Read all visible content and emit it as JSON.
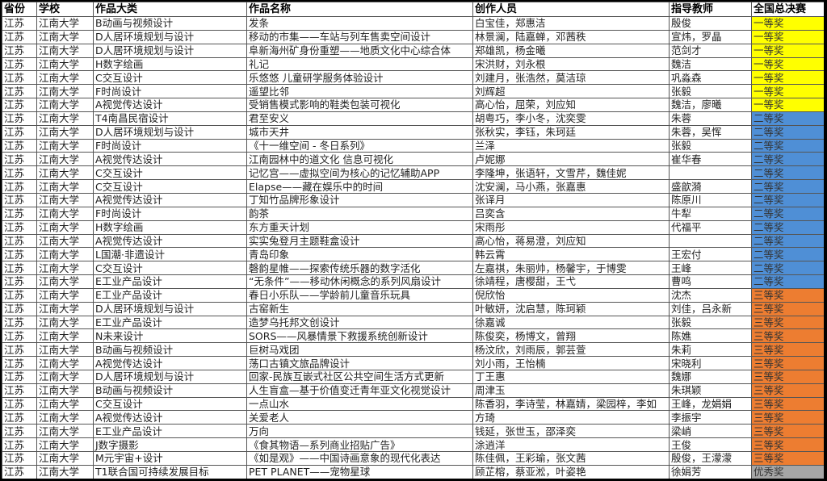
{
  "headers": [
    "省份",
    "学校",
    "作品大类",
    "作品名称",
    "创作人员",
    "指导教师",
    "全国总决赛"
  ],
  "award_colors": {
    "一等奖": "#ffff00",
    "二等奖": "#4f8fd6",
    "三等奖": "#ed7d31",
    "优秀奖": "#a6a6a6"
  },
  "rows": [
    [
      "江苏",
      "江南大学",
      "B动画与视频设计",
      "发条",
      "白宝佳，郑惠洁",
      "殷俊",
      "一等奖"
    ],
    [
      "江苏",
      "江南大学",
      "D人居环境规划与设计",
      "移动的市集——车站与列车售卖空间设计",
      "林景澜，陆嘉蝉，邓茜秩",
      "宣炜，罗晶",
      "一等奖"
    ],
    [
      "江苏",
      "江南大学",
      "D人居环境规划与设计",
      "阜新海州矿身份重塑——地质文化中心综合体",
      "郑雄凯，杨金曦",
      "范剑才",
      "一等奖"
    ],
    [
      "江苏",
      "江南大学",
      "H数字绘画",
      "礼记",
      "宋洪财，刘永根",
      "魏洁",
      "一等奖"
    ],
    [
      "江苏",
      "江南大学",
      "C交互设计",
      "乐悠悠 儿童研学服务体验设计",
      "刘建月，张浩然，莫洁琼",
      "巩淼森",
      "一等奖"
    ],
    [
      "江苏",
      "江南大学",
      "F时尚设计",
      "遥望比邻",
      "刘辉超",
      "张毅",
      "一等奖"
    ],
    [
      "江苏",
      "江南大学",
      "A视觉传达设计",
      "受销售模式影响的鞋类包装可视化",
      "高心怡，屈荣，刘应知",
      "魏洁，廖曦",
      "一等奖"
    ],
    [
      "江苏",
      "江南大学",
      "T4南昌民宿设计",
      "君至安义",
      "胡粤巧，李小冬，沈奕雯",
      "朱蓉",
      "二等奖"
    ],
    [
      "江苏",
      "江南大学",
      "D人居环境规划与设计",
      "城市天井",
      "张秋实，李钰，朱珂廷",
      "朱蓉，吴恽",
      "二等奖"
    ],
    [
      "江苏",
      "江南大学",
      "F时尚设计",
      "《十一维空间 - 冬日系列》",
      "兰泽",
      "张毅",
      "二等奖"
    ],
    [
      "江苏",
      "江南大学",
      "A视觉传达设计",
      "江南园林中的道文化 信息可视化",
      "卢妮娜",
      "崔华春",
      "二等奖"
    ],
    [
      "江苏",
      "江南大学",
      "C交互设计",
      "记忆宫——虚拟空间为核心的记忆辅助APP",
      "李隆坤，张语轩，文雪芹，魏佳妮",
      "",
      "二等奖"
    ],
    [
      "江苏",
      "江南大学",
      "C交互设计",
      "Elapse——藏在娱乐中的时间",
      "沈安澜，马小燕，张嘉惠",
      "盛歆漪",
      "二等奖"
    ],
    [
      "江苏",
      "江南大学",
      "A视觉传达设计",
      "丁知竹品牌形象设计",
      "张译月",
      "陈原川",
      "二等奖"
    ],
    [
      "江苏",
      "江南大学",
      "F时尚设计",
      "韵茶",
      "吕奕含",
      "牛犁",
      "二等奖"
    ],
    [
      "江苏",
      "江南大学",
      "H数字绘画",
      "东方重天计划",
      "宋雨彤",
      "代福平",
      "二等奖"
    ],
    [
      "江苏",
      "江南大学",
      "A视觉传达设计",
      "实实兔登月主题鞋盒设计",
      "高心怡，蒋易澄，刘应知",
      "",
      "二等奖"
    ],
    [
      "江苏",
      "江南大学",
      "L国潮·非遗设计",
      "青岛印象",
      "韩云霄",
      "王宏付",
      "二等奖"
    ],
    [
      "江苏",
      "江南大学",
      "C交互设计",
      "磬韵星帷——探索传统乐器的数字活化",
      "左嘉祺，朱丽帅，杨馨宇，于博雯",
      "王峰",
      "二等奖"
    ],
    [
      "江苏",
      "江南大学",
      "E工业产品设计",
      "“无条件”——移动休闲概念的系列风扇设计",
      "徐靖程，唐樱甜，王弋",
      "曹鸣",
      "二等奖"
    ],
    [
      "江苏",
      "江南大学",
      "E工业产品设计",
      "春日小乐队——学龄前儿童音乐玩具",
      "倪欣怡",
      "沈杰",
      "三等奖"
    ],
    [
      "江苏",
      "江南大学",
      "D人居环境规划与设计",
      "古窑新生",
      "叶敏妍，沈启慧，陈珂颖",
      "刘佳，吕永新",
      "三等奖"
    ],
    [
      "江苏",
      "江南大学",
      "E工业产品设计",
      "造梦乌托邦文创设计",
      "徐嘉诚",
      "张毅",
      "三等奖"
    ],
    [
      "江苏",
      "江南大学",
      "N未来设计",
      "SORS——风暴情景下救援系统创新设计",
      "陈俊奕，杨博文，曾翔",
      "陈嫶",
      "三等奖"
    ],
    [
      "江苏",
      "江南大学",
      "B动画与视频设计",
      "巨树马戏团",
      "杨汶欣，刘雨辰，郭芸萱",
      "朱莉",
      "三等奖"
    ],
    [
      "江苏",
      "江南大学",
      "A视觉传达设计",
      "荡口古镇文旅品牌设计",
      "刘小雨，王怡楠",
      "宋晓利",
      "三等奖"
    ],
    [
      "江苏",
      "江南大学",
      "D人居环境规划与设计",
      "回家-民族互嵌式社区公共空间生活方式更新",
      "丁王惠",
      "魏娜",
      "三等奖"
    ],
    [
      "江苏",
      "江南大学",
      "B动画与视频设计",
      "人生盲盒—基于价值变迁青年亚文化视觉设计",
      "周津玉",
      "朱琪颖",
      "三等奖"
    ],
    [
      "江苏",
      "江南大学",
      "C交互设计",
      "一点山水",
      "陈香羽，李诗莹，林嘉婧，梁园梓，李如",
      "王峰，龙娟娟",
      "三等奖"
    ],
    [
      "江苏",
      "江南大学",
      "A视觉传达设计",
      "关爱老人",
      "方琦",
      "李振宇",
      "三等奖"
    ],
    [
      "江苏",
      "江南大学",
      "E工业产品设计",
      "万向",
      "钱延，张世玉，邵泽奕",
      "梁峭",
      "三等奖"
    ],
    [
      "江苏",
      "江南大学",
      "J数字摄影",
      "《食其物语—系列商业招贴广告》",
      "涂逍洋",
      "王俊",
      "三等奖"
    ],
    [
      "江苏",
      "江南大学",
      "M元宇宙+设计",
      "《如是观》——中国诗画意象的现代化表达",
      "陈佳佩，王彩瑜，张文茜",
      "殷俊，王濛濛",
      "三等奖"
    ],
    [
      "江苏",
      "江南大学",
      "T1联合国可持续发展目标",
      "PET PLANET——宠物星球",
      "顾芷榕，蔡亚淞，叶姿艳",
      "徐娟芳",
      "优秀奖"
    ]
  ]
}
